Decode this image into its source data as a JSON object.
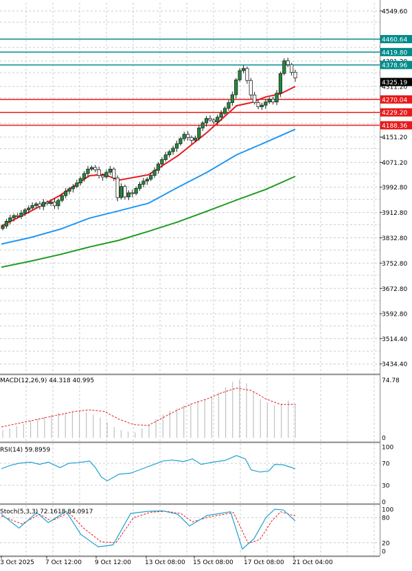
{
  "colors": {
    "background": "#ffffff",
    "grid": "#c8ccd0",
    "candle": "#1f8a3b",
    "candle_wick": "#222222",
    "ma_red": "#e8191a",
    "ma_blue": "#2196f3",
    "ma_green": "#1e9a1e",
    "level_teal": "#008b8b",
    "level_red": "#e8191a",
    "price_tag": "#000000",
    "macd_hist": "#c0c0c0",
    "macd_signal": "#e8191a",
    "rsi_line": "#1ea0d2",
    "stoch_main": "#1ea0d2",
    "stoch_signal": "#e8191a",
    "panel_border": "#888888"
  },
  "chart_data": [
    {
      "type": "candlestick",
      "title": "",
      "y_ticks": [
        "4549.60",
        "4460.60",
        "4391.20",
        "4311.20",
        "4151.20",
        "4071.20",
        "3992.80",
        "3912.80",
        "3832.80",
        "3752.80",
        "3672.80",
        "3592.80",
        "3514.40",
        "3434.40"
      ],
      "ylim": [
        3400,
        4580
      ],
      "x_tick_labels": [
        "3 Oct 2025",
        "7 Oct 12:00",
        "9 Oct 12:00",
        "13 Oct 08:00",
        "15 Oct 08:00",
        "17 Oct 08:00",
        "21 Oct 04:00"
      ],
      "current_price": "4325.19",
      "levels": [
        {
          "label": "4460.64",
          "value": 4460.64,
          "color": "teal"
        },
        {
          "label": "4419.80",
          "value": 4419.8,
          "color": "teal"
        },
        {
          "label": "4378.96",
          "value": 4378.96,
          "color": "teal"
        },
        {
          "label": "4270.04",
          "value": 4270.04,
          "color": "red"
        },
        {
          "label": "4229.20",
          "value": 4229.2,
          "color": "red"
        },
        {
          "label": "4188.36",
          "value": 4188.36,
          "color": "red"
        }
      ],
      "candles_close": [
        3870,
        3885,
        3896,
        3903,
        3900,
        3911,
        3921,
        3927,
        3935,
        3940,
        3932,
        3945,
        3941,
        3946,
        3934,
        3951,
        3966,
        3980,
        3988,
        3995,
        4006,
        4020,
        4036,
        4050,
        4055,
        4048,
        4030,
        4025,
        4040,
        4050,
        4022,
        3960,
        3995,
        3962,
        3975,
        3973,
        3989,
        4002,
        4012,
        4018,
        4030,
        4046,
        4066,
        4080,
        4095,
        4105,
        4116,
        4130,
        4146,
        4160,
        4150,
        4141,
        4148,
        4180,
        4196,
        4210,
        4205,
        4199,
        4214,
        4226,
        4242,
        4260,
        4285,
        4332,
        4361,
        4368,
        4330,
        4284,
        4260,
        4247,
        4252,
        4262,
        4271,
        4262,
        4290,
        4352,
        4392,
        4380,
        4356,
        4338
      ],
      "series": [
        {
          "name": "",
          "color": "red",
          "x_frac": [
            0,
            0.1,
            0.2,
            0.3,
            0.35,
            0.4,
            0.5,
            0.6,
            0.7,
            0.8,
            0.85,
            0.9,
            0.95,
            1.0
          ],
          "values": [
            3870,
            3917,
            3967,
            4029,
            4033,
            4015,
            4032,
            4092,
            4166,
            4250,
            4260,
            4278,
            4288,
            4311
          ]
        },
        {
          "name": "",
          "color": "blue",
          "x_frac": [
            0,
            0.1,
            0.2,
            0.3,
            0.4,
            0.5,
            0.6,
            0.7,
            0.8,
            0.9,
            1.0
          ],
          "values": [
            3813,
            3834,
            3860,
            3895,
            3918,
            3942,
            3992,
            4040,
            4095,
            4135,
            4176
          ]
        },
        {
          "name": "",
          "color": "green",
          "x_frac": [
            0,
            0.1,
            0.2,
            0.3,
            0.4,
            0.5,
            0.6,
            0.7,
            0.8,
            0.9,
            1.0
          ],
          "values": [
            3740,
            3759,
            3780,
            3804,
            3825,
            3853,
            3883,
            3917,
            3952,
            3986,
            4027
          ]
        }
      ]
    },
    {
      "type": "bar",
      "label": "MACD(12,26,9) 44.318 40.995",
      "y_ticks": [
        "74.78",
        "0"
      ],
      "ylim": [
        0,
        80
      ],
      "series": [
        {
          "name": "MACD",
          "kind": "histogram",
          "values": [
            10,
            12,
            15,
            18,
            22,
            24,
            27,
            30,
            32,
            32,
            34,
            35,
            33,
            30,
            26,
            20,
            14,
            10,
            8,
            7,
            12,
            18,
            24,
            30,
            35,
            38,
            42,
            44,
            48,
            50,
            52,
            58,
            65,
            72,
            75,
            70,
            60,
            50,
            45,
            42,
            44,
            48,
            44
          ]
        },
        {
          "name": "Signal",
          "kind": "line",
          "x_frac": [
            0,
            0.1,
            0.2,
            0.25,
            0.3,
            0.35,
            0.4,
            0.45,
            0.5,
            0.55,
            0.6,
            0.65,
            0.7,
            0.75,
            0.8,
            0.85,
            0.9,
            0.95,
            1.0
          ],
          "values": [
            14,
            22,
            30,
            34,
            36,
            34,
            24,
            17,
            16,
            26,
            36,
            44,
            50,
            58,
            64,
            61,
            50,
            43,
            43
          ]
        }
      ]
    },
    {
      "type": "line",
      "label": "RSI(14) 59.8959",
      "y_ticks": [
        "100",
        "70",
        "30",
        "0"
      ],
      "ylim": [
        0,
        100
      ],
      "series": [
        {
          "name": "",
          "x_frac": [
            0,
            0.03,
            0.06,
            0.1,
            0.13,
            0.16,
            0.2,
            0.23,
            0.26,
            0.3,
            0.32,
            0.34,
            0.36,
            0.4,
            0.44,
            0.48,
            0.52,
            0.55,
            0.58,
            0.62,
            0.65,
            0.68,
            0.72,
            0.76,
            0.8,
            0.83,
            0.85,
            0.88,
            0.91,
            0.93,
            0.96,
            1.0
          ],
          "values": [
            60,
            66,
            70,
            72,
            68,
            72,
            62,
            70,
            71,
            74,
            62,
            45,
            38,
            50,
            52,
            60,
            68,
            74,
            76,
            73,
            78,
            68,
            72,
            75,
            84,
            78,
            58,
            54,
            56,
            68,
            67,
            60
          ]
        }
      ]
    },
    {
      "type": "line",
      "label": "Stoch(5,3,3) 72.1618 84.0917",
      "y_ticks": [
        "100",
        "80",
        "20",
        "0"
      ],
      "ylim": [
        0,
        100
      ],
      "series": [
        {
          "name": "",
          "color": "blue",
          "x_frac": [
            0,
            0.06,
            0.12,
            0.16,
            0.22,
            0.27,
            0.33,
            0.38,
            0.44,
            0.5,
            0.55,
            0.6,
            0.64,
            0.7,
            0.78,
            0.82,
            0.86,
            0.9,
            0.93,
            0.96,
            1.0
          ],
          "values": [
            88,
            55,
            92,
            68,
            95,
            40,
            10,
            15,
            90,
            95,
            96,
            88,
            60,
            85,
            94,
            5,
            30,
            80,
            100,
            98,
            72
          ]
        },
        {
          "name": "",
          "color": "red",
          "x_frac": [
            0,
            0.07,
            0.13,
            0.17,
            0.23,
            0.28,
            0.34,
            0.39,
            0.45,
            0.51,
            0.56,
            0.61,
            0.65,
            0.71,
            0.79,
            0.84,
            0.88,
            0.92,
            0.95,
            1.0
          ],
          "values": [
            84,
            65,
            88,
            72,
            92,
            55,
            22,
            20,
            80,
            93,
            95,
            90,
            70,
            82,
            92,
            18,
            28,
            72,
            94,
            84
          ]
        }
      ]
    }
  ]
}
